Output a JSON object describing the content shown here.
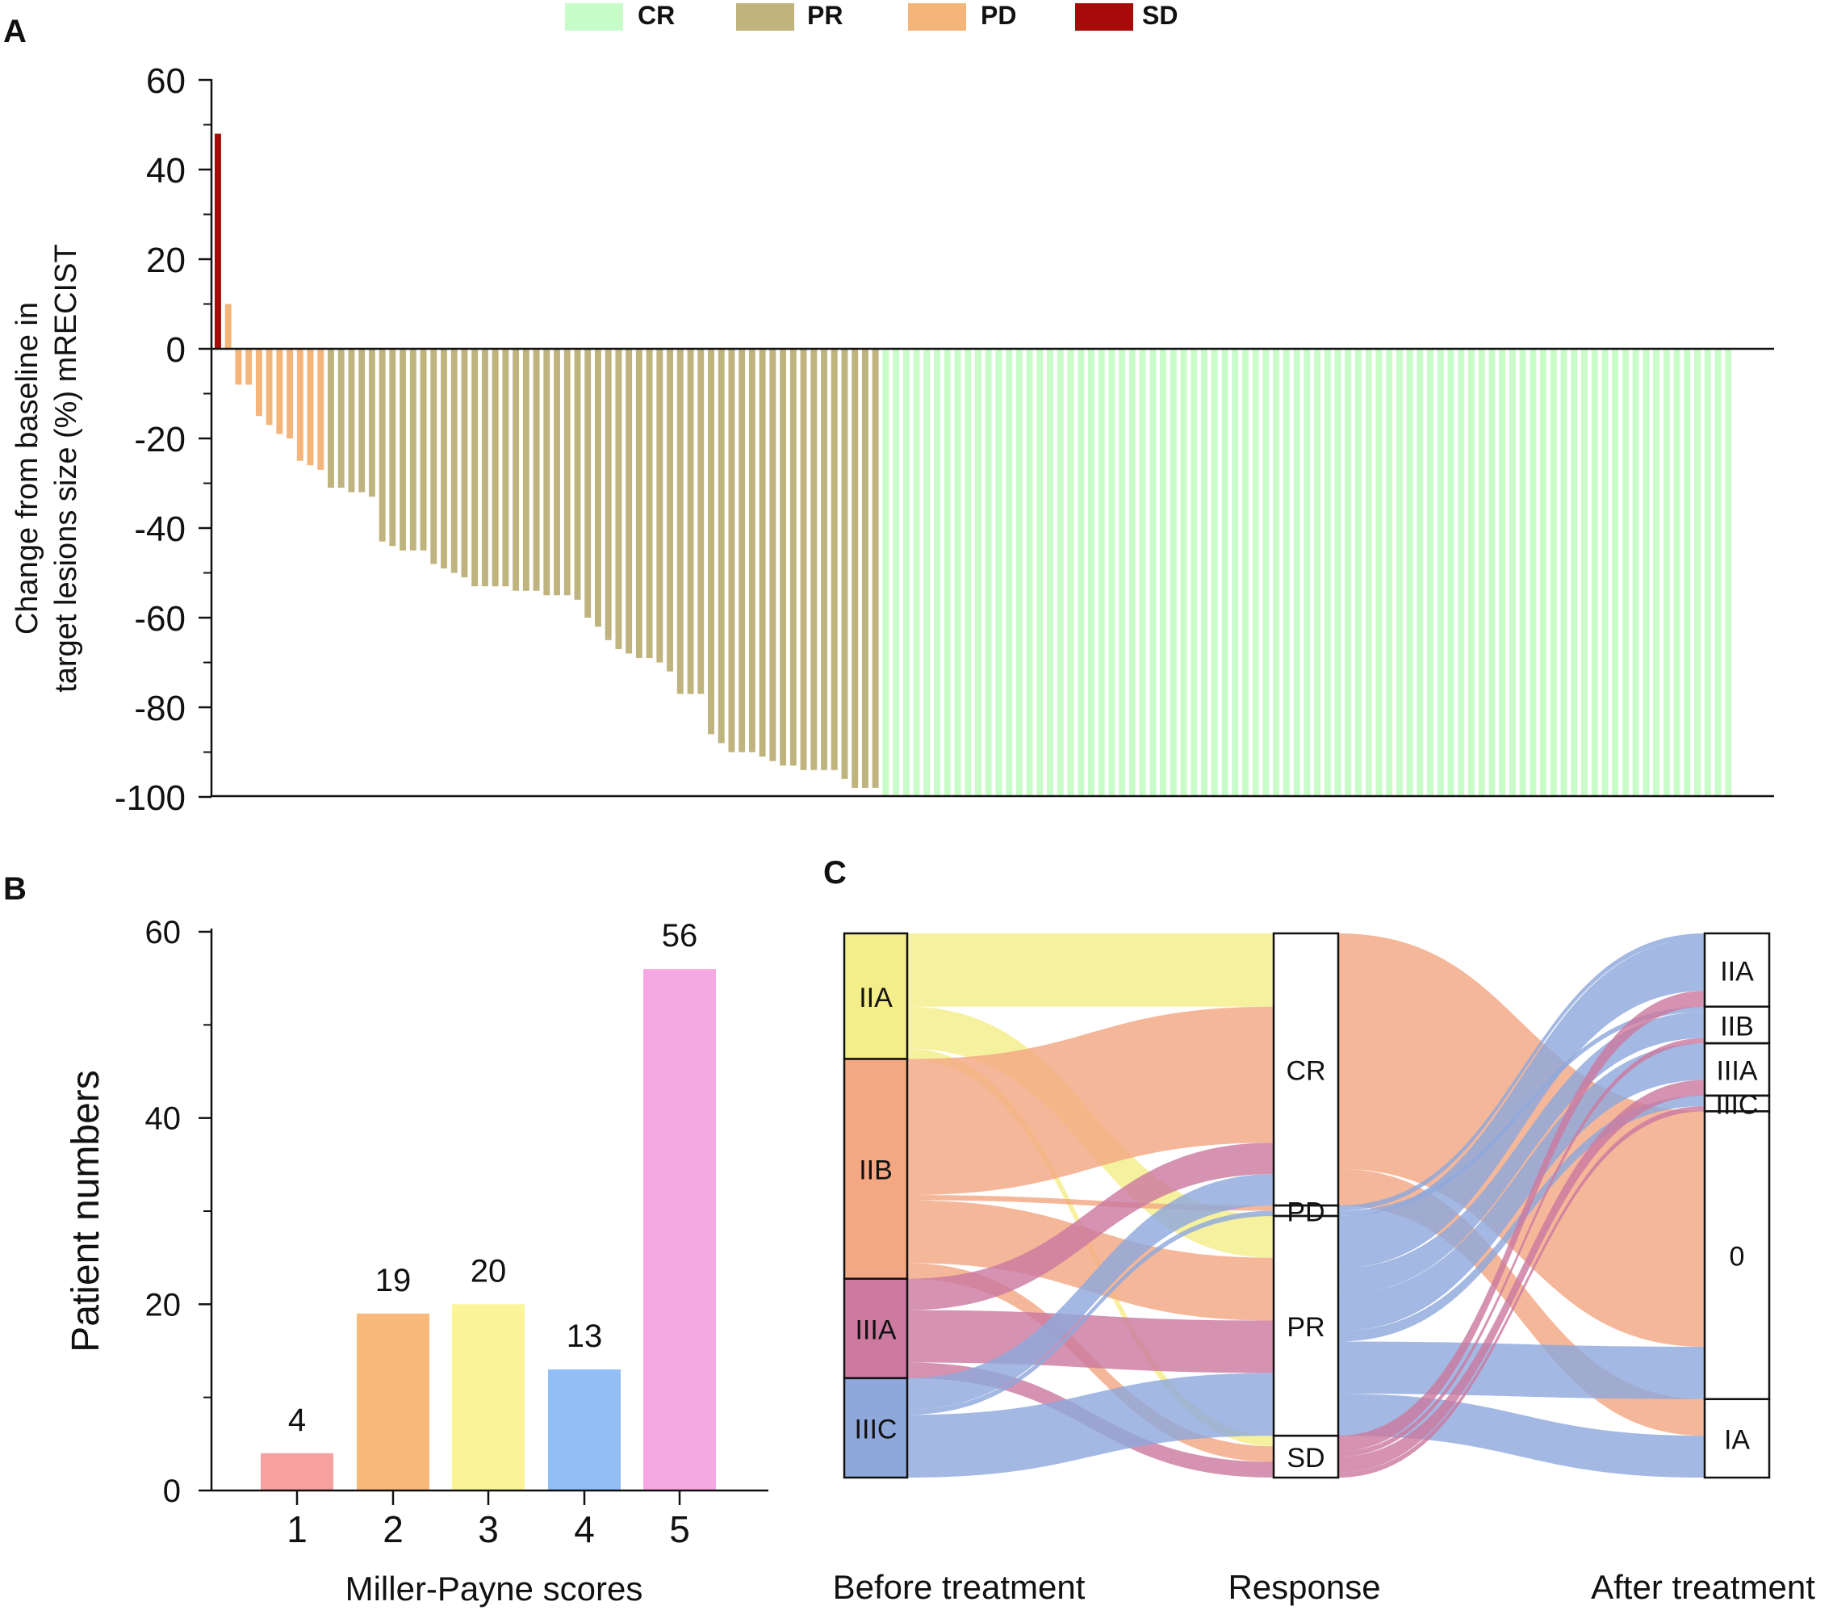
{
  "panels": {
    "a": "A",
    "b": "B",
    "c": "C"
  },
  "colors": {
    "CR": "#c8fcc8",
    "PR": "#bfb37e",
    "PD": "#f4b57a",
    "SD": "#a80a0a",
    "ms1": "#f7a0a0",
    "ms2": "#f9b97a",
    "ms3": "#fbf597",
    "ms4": "#93bff7",
    "ms5": "#f5a8e2",
    "flow_IIA": "#f4ee8a",
    "flow_IIB": "#f3a783",
    "flow_IIIA": "#cc7aa0",
    "flow_IIIC": "#8fa8dc"
  },
  "chart_data": [
    {
      "id": "A",
      "type": "bar",
      "title": "",
      "xlabel": "",
      "ylabel_lines": [
        "Change from baseline in",
        "target lesions size (%) mRECIST"
      ],
      "ylim": [
        -100,
        60
      ],
      "yticks": [
        60,
        40,
        20,
        0,
        -20,
        -40,
        -60,
        -80,
        -100
      ],
      "ytick_labels": [
        "60",
        "40",
        "20",
        "0",
        "-20",
        "-40",
        "-60",
        "-80",
        "-100"
      ],
      "legend": [
        {
          "key": "CR",
          "label": "CR"
        },
        {
          "key": "PR",
          "label": "PR"
        },
        {
          "key": "PD",
          "label": "PD"
        },
        {
          "key": "SD",
          "label": "SD"
        }
      ],
      "legend_position": "top",
      "series": [
        {
          "name": "SD",
          "values": [
            48
          ]
        },
        {
          "name": "PD",
          "values": [
            10,
            -8,
            -8,
            -15,
            -17,
            -19,
            -20,
            -25,
            -26,
            -27
          ]
        },
        {
          "name": "PR",
          "values": [
            -31,
            -31,
            -32,
            -32,
            -33,
            -43,
            -44,
            -45,
            -45,
            -45,
            -48,
            -49,
            -50,
            -51,
            -53,
            -53,
            -53,
            -53,
            -54,
            -54,
            -54,
            -55,
            -55,
            -55,
            -56,
            -60,
            -62,
            -65,
            -67,
            -68,
            -69,
            -69,
            -70,
            -72,
            -77,
            -77,
            -77,
            -86,
            -88,
            -90,
            -90,
            -90,
            -91,
            -92,
            -93,
            -93,
            -94,
            -94,
            -94,
            -94,
            -96,
            -98,
            -98,
            -98
          ]
        },
        {
          "name": "CR",
          "count": 83,
          "value": -100
        }
      ]
    },
    {
      "id": "B",
      "type": "bar",
      "title": "",
      "xlabel": "Miller-Payne scores",
      "ylabel": "Patient numbers",
      "ylim": [
        0,
        60
      ],
      "yticks": [
        0,
        20,
        40,
        60
      ],
      "ytick_labels": [
        "0",
        "20",
        "40",
        "60"
      ],
      "categories": [
        "1",
        "2",
        "3",
        "4",
        "5"
      ],
      "values": [
        4,
        19,
        20,
        13,
        56
      ],
      "data_labels": [
        "4",
        "19",
        "20",
        "13",
        "56"
      ]
    },
    {
      "id": "C",
      "type": "sankey",
      "axis_labels": [
        "Before treatment",
        "Response",
        "After treatment"
      ],
      "columns": [
        {
          "name": "Before treatment",
          "nodes": [
            {
              "label": "IIA",
              "value": 24
            },
            {
              "label": "IIB",
              "value": 42
            },
            {
              "label": "IIIA",
              "value": 19
            },
            {
              "label": "IIIC",
              "value": 19
            }
          ]
        },
        {
          "name": "Response",
          "nodes": [
            {
              "label": "CR",
              "value": 52
            },
            {
              "label": "PD",
              "value": 2
            },
            {
              "label": "PR",
              "value": 42
            },
            {
              "label": "SD",
              "value": 8
            }
          ]
        },
        {
          "name": "After treatment",
          "nodes": [
            {
              "label": "IIA",
              "value": 14
            },
            {
              "label": "IIB",
              "value": 7
            },
            {
              "label": "IIIA",
              "value": 10
            },
            {
              "label": "IIIC",
              "value": 3
            },
            {
              "label": "0",
              "value": 55
            },
            {
              "label": "IA",
              "value": 15
            }
          ]
        }
      ],
      "links": [
        {
          "source": "IIA",
          "target": "CR",
          "value": 14
        },
        {
          "source": "IIA",
          "target": "PR",
          "value": 8
        },
        {
          "source": "IIA",
          "target": "SD",
          "value": 2
        },
        {
          "source": "IIB",
          "target": "CR",
          "value": 26
        },
        {
          "source": "IIB",
          "target": "PD",
          "value": 1
        },
        {
          "source": "IIB",
          "target": "PR",
          "value": 12
        },
        {
          "source": "IIB",
          "target": "SD",
          "value": 3
        },
        {
          "source": "IIIA",
          "target": "CR",
          "value": 6
        },
        {
          "source": "IIIA",
          "target": "PR",
          "value": 10
        },
        {
          "source": "IIIA",
          "target": "SD",
          "value": 3
        },
        {
          "source": "IIIC",
          "target": "CR",
          "value": 6
        },
        {
          "source": "IIIC",
          "target": "PD",
          "value": 1
        },
        {
          "source": "IIIC",
          "target": "PR",
          "value": 12
        },
        {
          "source": "CR",
          "target": "0",
          "value": 45
        },
        {
          "source": "CR",
          "target": "IA",
          "value": 7
        },
        {
          "source": "PD",
          "target": "IIA",
          "value": 1
        },
        {
          "source": "PD",
          "target": "IIB",
          "value": 1
        },
        {
          "source": "PR",
          "target": "IIA",
          "value": 10
        },
        {
          "source": "PR",
          "target": "IIB",
          "value": 5
        },
        {
          "source": "PR",
          "target": "IIIA",
          "value": 7
        },
        {
          "source": "PR",
          "target": "IIIC",
          "value": 2
        },
        {
          "source": "PR",
          "target": "0",
          "value": 10
        },
        {
          "source": "PR",
          "target": "IA",
          "value": 8
        },
        {
          "source": "SD",
          "target": "IIA",
          "value": 3
        },
        {
          "source": "SD",
          "target": "IIB",
          "value": 1
        },
        {
          "source": "SD",
          "target": "IIIA",
          "value": 3
        },
        {
          "source": "SD",
          "target": "IIIC",
          "value": 1
        }
      ]
    }
  ]
}
